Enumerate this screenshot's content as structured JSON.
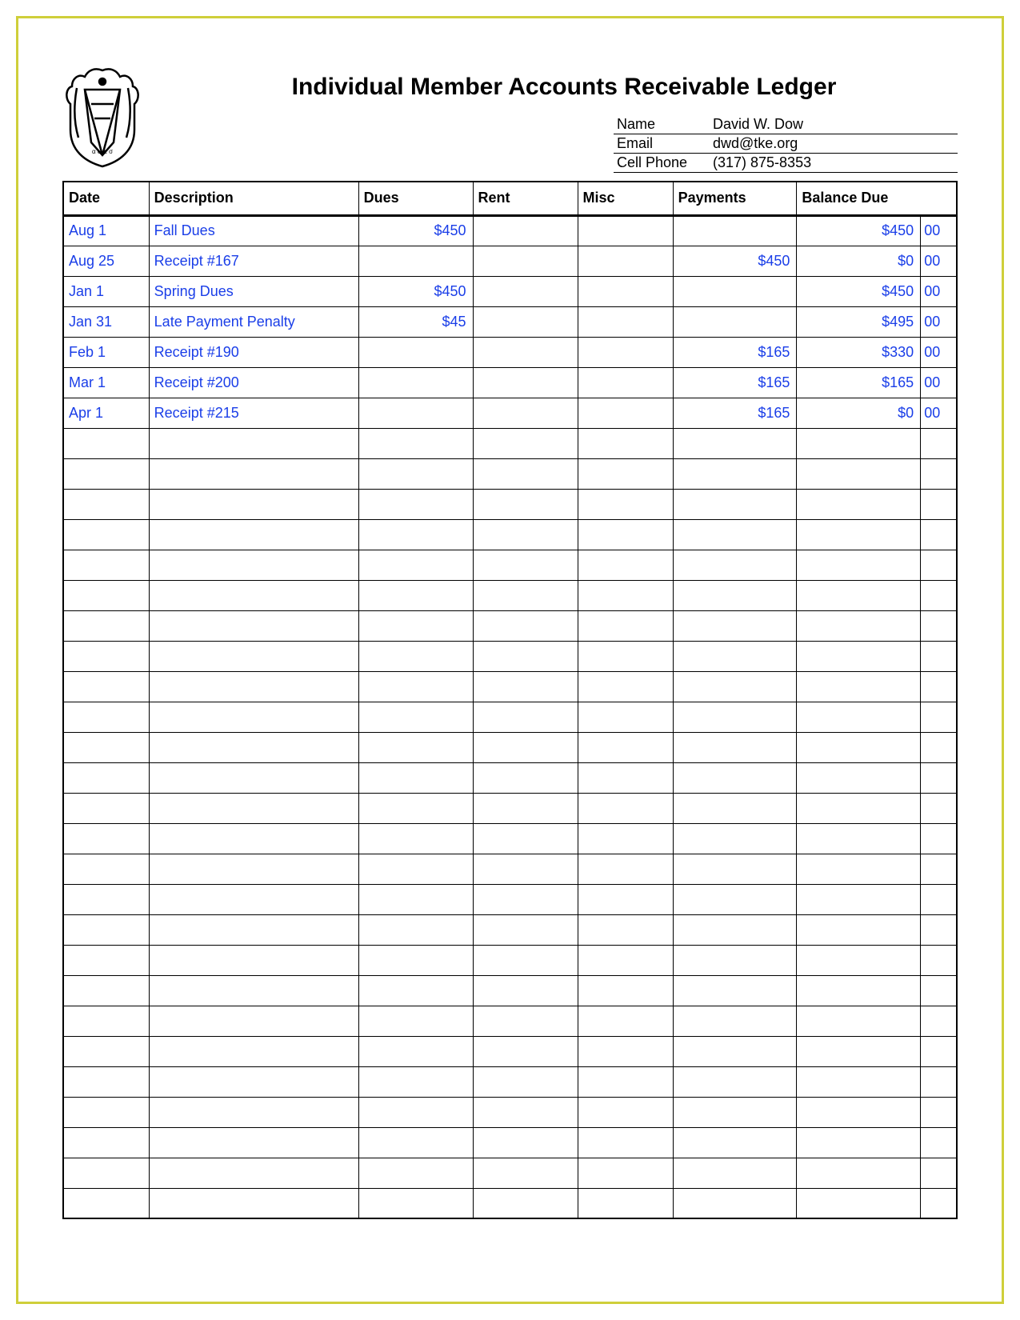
{
  "document": {
    "title": "Individual Member Accounts Receivable Ledger",
    "contact": {
      "name_label": "Name",
      "name_value": "David W. Dow",
      "email_label": "Email",
      "email_value": "dwd@tke.org",
      "phone_label": "Cell Phone",
      "phone_value": "(317) 875-8353"
    },
    "columns": {
      "date": "Date",
      "description": "Description",
      "dues": "Dues",
      "rent": "Rent",
      "misc": "Misc",
      "payments": "Payments",
      "balance_due": "Balance Due"
    },
    "data_color": "#1a3ee8",
    "border_color": "#cfcf3a",
    "rows": [
      {
        "date": "Aug 1",
        "description": "Fall Dues",
        "dues": "$450",
        "rent": "",
        "misc": "",
        "payments": "",
        "balance": "$450",
        "cents": "00"
      },
      {
        "date": "Aug 25",
        "description": "Receipt #167",
        "dues": "",
        "rent": "",
        "misc": "",
        "payments": "$450",
        "balance": "$0",
        "cents": "00"
      },
      {
        "date": "Jan 1",
        "description": "Spring Dues",
        "dues": "$450",
        "rent": "",
        "misc": "",
        "payments": "",
        "balance": "$450",
        "cents": "00"
      },
      {
        "date": "Jan 31",
        "description": "Late Payment Penalty",
        "dues": "$45",
        "rent": "",
        "misc": "",
        "payments": "",
        "balance": "$495",
        "cents": "00"
      },
      {
        "date": "Feb 1",
        "description": "Receipt #190",
        "dues": "",
        "rent": "",
        "misc": "",
        "payments": "$165",
        "balance": "$330",
        "cents": "00"
      },
      {
        "date": "Mar 1",
        "description": "Receipt #200",
        "dues": "",
        "rent": "",
        "misc": "",
        "payments": "$165",
        "balance": "$165",
        "cents": "00"
      },
      {
        "date": "Apr 1",
        "description": "Receipt #215",
        "dues": "",
        "rent": "",
        "misc": "",
        "payments": "$165",
        "balance": "$0",
        "cents": "00"
      }
    ],
    "empty_row_count": 26
  }
}
